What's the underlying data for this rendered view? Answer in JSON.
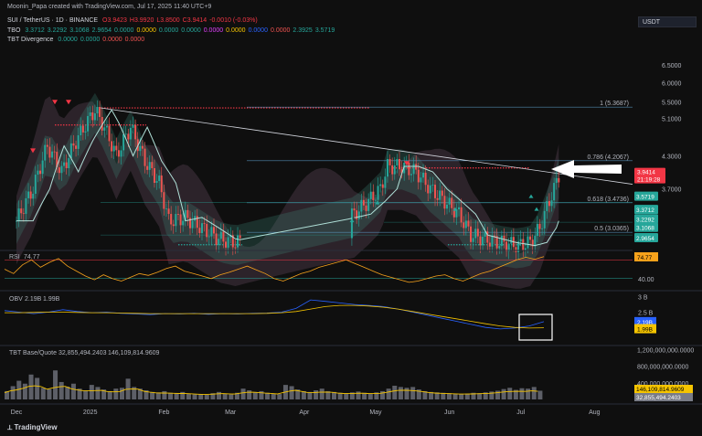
{
  "header": {
    "caption": "Moonin_Papa created with TradingView.com, Jul 17, 2025 11:40 UTC+9",
    "symbol": "SUI / TetherUS · 1D · BINANCE",
    "ohlc": [
      {
        "k": "O",
        "v": "3.9423"
      },
      {
        "k": "H",
        "v": "3.9920"
      },
      {
        "k": "L",
        "v": "3.8500"
      },
      {
        "k": "C",
        "v": "3.9414"
      },
      {
        "k": "",
        "v": "-0.0010 (-0.03%)"
      }
    ],
    "tbo_label": "TBO",
    "tbo_values": [
      "3.3712",
      "3.2292",
      "3.1068",
      "2.9654",
      "0.0000",
      "0.0000",
      "0.0000",
      "0.0000",
      "0.0000",
      "0.0000",
      "0.0000",
      "0.0000",
      "2.3925",
      "3.5719"
    ],
    "tbt_label": "TBT Divergence",
    "tbt_values": [
      "0.0000",
      "0.0000",
      "0.0000",
      "0.0000"
    ],
    "currency": "USDT"
  },
  "colors": {
    "background": "#0f0f0f",
    "up": "#26a69a",
    "down": "#ef5350",
    "accent_red": "#f23645",
    "rsi_line": "#f7a21b",
    "obv_line": "#2962ff",
    "obv_ma": "#f5c400",
    "fib_line": "#5b9cc9",
    "band_line": "#b0e0d8"
  },
  "chart_data": [
    {
      "type": "candlestick",
      "title": "SUI / TetherUS · 1D · BINANCE",
      "y_scale": "log",
      "ylim": [
        2.82,
        7.1
      ],
      "y_ticks": [
        "6.5000",
        "6.0000",
        "5.5000",
        "5.1000",
        "4.3000",
        "3.7000"
      ],
      "x_ticks": [
        "Dec",
        "2025",
        "Feb",
        "Mar",
        "Apr",
        "May",
        "Jun",
        "Jul",
        "Aug"
      ],
      "close_path": [
        [
          "2024-12-01",
          3.2
        ],
        [
          "2024-12-08",
          3.7
        ],
        [
          "2024-12-14",
          4.5
        ],
        [
          "2024-12-20",
          4.0
        ],
        [
          "2024-12-26",
          4.6
        ],
        [
          "2025-01-03",
          5.3
        ],
        [
          "2025-01-06",
          5.0
        ],
        [
          "2025-01-12",
          4.3
        ],
        [
          "2025-01-18",
          4.9
        ],
        [
          "2025-01-24",
          4.2
        ],
        [
          "2025-01-30",
          3.8
        ],
        [
          "2025-02-03",
          3.2
        ],
        [
          "2025-02-10",
          3.25
        ],
        [
          "2025-02-17",
          3.1
        ],
        [
          "2025-02-24",
          2.95
        ],
        [
          "2025-03-03",
          2.9
        ],
        [
          "2025-04-22",
          3.3
        ],
        [
          "2025-04-28",
          3.5
        ],
        [
          "2025-05-03",
          3.7
        ],
        [
          "2025-05-06",
          4.1
        ],
        [
          "2025-05-12",
          4.1
        ],
        [
          "2025-05-18",
          4.0
        ],
        [
          "2025-05-24",
          3.7
        ],
        [
          "2025-05-30",
          3.5
        ],
        [
          "2025-06-05",
          3.3
        ],
        [
          "2025-06-10",
          3.0
        ],
        [
          "2025-06-16",
          2.95
        ],
        [
          "2025-06-22",
          2.9
        ],
        [
          "2025-06-30",
          2.86
        ],
        [
          "2025-07-05",
          2.9
        ],
        [
          "2025-07-09",
          3.1
        ],
        [
          "2025-07-12",
          3.4
        ],
        [
          "2025-07-15",
          3.7
        ],
        [
          "2025-07-17",
          3.94
        ]
      ],
      "fib_levels": [
        {
          "label": "1 (5.3687)",
          "value": 5.3687
        },
        {
          "label": "0.786 (4.2067)",
          "value": 4.2067
        },
        {
          "label": "0.618 (3.4736)",
          "value": 3.4736
        },
        {
          "label": "0.5 (3.0365)",
          "value": 3.0365
        }
      ],
      "price_badges": [
        {
          "text": "3.9414",
          "time": "21:19:28",
          "color": "#f23645"
        },
        {
          "text": "3.5719",
          "color": "#26a69a"
        },
        {
          "text": "3.3712",
          "color": "#26a69a"
        },
        {
          "text": "3.2292",
          "color": "#26a69a"
        },
        {
          "text": "3.1068",
          "color": "#26a69a"
        },
        {
          "text": "2.9654",
          "color": "#26a69a"
        }
      ]
    },
    {
      "type": "line",
      "name": "RSI",
      "title": "RSI",
      "label_value": "74.77",
      "ylim": [
        25,
        85
      ],
      "y_ticks": [
        "40.00"
      ],
      "current": "74.77",
      "values": [
        55,
        48,
        62,
        70,
        58,
        66,
        72,
        60,
        52,
        44,
        38,
        46,
        40,
        36,
        42,
        48,
        45,
        50,
        56,
        60,
        52,
        48,
        44,
        40,
        46,
        50,
        55,
        60,
        54,
        48,
        40,
        36,
        42,
        48,
        52,
        58,
        62,
        66,
        70,
        64,
        58,
        52,
        46,
        42,
        38,
        34,
        36,
        40,
        44,
        46,
        40,
        36,
        42,
        48,
        52,
        58,
        64,
        70,
        74,
        71,
        75
      ]
    },
    {
      "type": "line",
      "name": "OBV",
      "title": "OBV",
      "label_values": [
        "2.19B",
        "1.99B"
      ],
      "ylim": [
        1.5,
        3.2
      ],
      "y_ticks": [
        "3 B",
        "2.5 B"
      ],
      "series": [
        {
          "name": "2.19B",
          "values": [
            2.55,
            2.5,
            2.45,
            2.5,
            2.58,
            2.52,
            2.48,
            2.5,
            2.46,
            2.44,
            2.42,
            2.45,
            2.44,
            2.46,
            2.43,
            2.45,
            2.44,
            2.46,
            2.47,
            2.5,
            2.62,
            2.9,
            2.85,
            2.8,
            2.75,
            2.72,
            2.68,
            2.6,
            2.5,
            2.4,
            2.3,
            2.2,
            2.1,
            2.0,
            1.95,
            1.98,
            2.05,
            2.19
          ]
        },
        {
          "name": "1.99B",
          "values": [
            2.48,
            2.48,
            2.49,
            2.5,
            2.5,
            2.49,
            2.48,
            2.48,
            2.47,
            2.46,
            2.45,
            2.45,
            2.45,
            2.45,
            2.45,
            2.45,
            2.45,
            2.45,
            2.46,
            2.48,
            2.52,
            2.6,
            2.68,
            2.72,
            2.72,
            2.7,
            2.66,
            2.6,
            2.52,
            2.44,
            2.36,
            2.28,
            2.2,
            2.12,
            2.05,
            2.0,
            1.98,
            1.99
          ]
        }
      ]
    },
    {
      "type": "bar",
      "name": "TBT Base/Quote",
      "title": "TBT Base/Quote",
      "label_values": [
        "32,855,494.2403",
        "146,109,814.9609"
      ],
      "ylim": [
        0,
        1300000000
      ],
      "y_ticks": [
        "1,200,000,000.0000",
        "800,000,000.0000",
        "400,000,000.0000"
      ],
      "current": [
        "146,109,814.9609",
        "32,855,494.2403"
      ],
      "values": [
        200,
        320,
        450,
        380,
        600,
        520,
        280,
        250,
        700,
        420,
        310,
        380,
        260,
        220,
        350,
        300,
        240,
        200,
        260,
        280,
        500,
        300,
        260,
        220,
        180,
        170,
        200,
        160,
        150,
        180,
        140,
        120,
        130,
        110,
        150,
        180,
        140,
        120,
        160,
        260,
        220,
        180,
        200,
        160,
        140,
        130,
        350,
        320,
        240,
        200,
        180,
        220,
        260,
        200,
        180,
        160,
        150,
        170,
        190,
        160,
        140,
        170,
        200,
        260,
        330,
        300,
        280,
        300,
        240,
        200,
        180,
        170,
        160,
        150,
        140,
        130,
        140,
        160,
        150,
        170,
        190,
        210,
        250,
        280,
        230,
        270,
        260,
        300,
        210
      ]
    }
  ]
}
